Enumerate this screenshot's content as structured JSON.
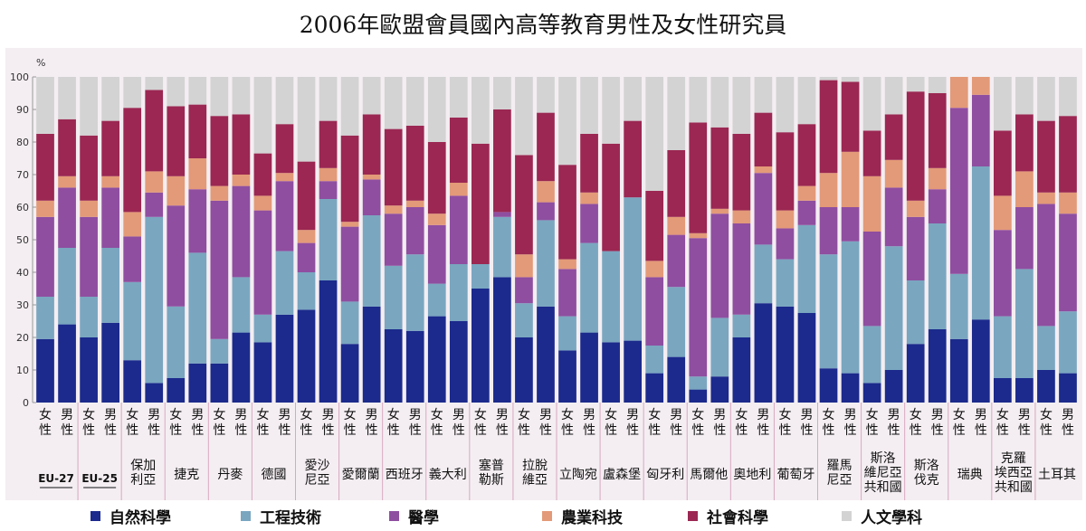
{
  "title": "2006年歐盟會員國內高等教育男性及女性研究員",
  "chart_data": {
    "type": "bar",
    "stacked": true,
    "y_unit_label": "%",
    "ylim": [
      0,
      100
    ],
    "yticks": [
      0,
      10,
      20,
      30,
      40,
      50,
      60,
      70,
      80,
      90,
      100
    ],
    "grid": false,
    "legend_position": "bottom",
    "colors": [
      "#1b2a8c",
      "#7aa6c0",
      "#8f4ea0",
      "#e39a78",
      "#9b2752",
      "#d3d3d3"
    ],
    "series_names": [
      "自然科學",
      "工程技術",
      "醫學",
      "農業科技",
      "社會科學",
      "人文學科"
    ],
    "groups": [
      {
        "label": "EU-27",
        "bars": [
          {
            "gender": "女性",
            "values": [
              19.5,
              13,
              24.5,
              5,
              20.5,
              17.5
            ]
          },
          {
            "gender": "男性",
            "values": [
              24,
              23.5,
              18.5,
              3.5,
              17.5,
              13
            ]
          }
        ]
      },
      {
        "label": "EU-25",
        "bars": [
          {
            "gender": "女性",
            "values": [
              20,
              12.5,
              24.5,
              5,
              20,
              18
            ]
          },
          {
            "gender": "男性",
            "values": [
              24.5,
              23,
              18.5,
              3.5,
              17,
              13.5
            ]
          }
        ]
      },
      {
        "label": "保加利亞",
        "bars": [
          {
            "gender": "女性",
            "values": [
              13,
              24,
              14,
              7.5,
              32,
              9.5
            ]
          },
          {
            "gender": "男性",
            "values": [
              6,
              51,
              7.5,
              6.5,
              25,
              4
            ]
          }
        ]
      },
      {
        "label": "捷克",
        "bars": [
          {
            "gender": "女性",
            "values": [
              7.5,
              22,
              31,
              9,
              21.5,
              9
            ]
          },
          {
            "gender": "男性",
            "values": [
              12,
              34,
              19.5,
              9.5,
              16.5,
              8.5
            ]
          }
        ]
      },
      {
        "label": "丹麥",
        "bars": [
          {
            "gender": "女性",
            "values": [
              12,
              7.5,
              42.5,
              4.5,
              21.5,
              12
            ]
          },
          {
            "gender": "男性",
            "values": [
              21.5,
              17,
              28,
              3.5,
              18.5,
              11.5
            ]
          }
        ]
      },
      {
        "label": "德國",
        "bars": [
          {
            "gender": "女性",
            "values": [
              18.5,
              8.5,
              32,
              4.5,
              13,
              23.5
            ]
          },
          {
            "gender": "男性",
            "values": [
              27,
              19.5,
              21.5,
              2.5,
              15,
              14.5
            ]
          }
        ]
      },
      {
        "label": "愛沙尼亞",
        "bars": [
          {
            "gender": "女性",
            "values": [
              28.5,
              11.5,
              9,
              4,
              21,
              26
            ]
          },
          {
            "gender": "男性",
            "values": [
              37.5,
              25,
              5.5,
              4,
              14.5,
              13.5
            ]
          }
        ]
      },
      {
        "label": "愛爾蘭",
        "bars": [
          {
            "gender": "女性",
            "values": [
              18,
              13,
              23,
              1.5,
              26.5,
              18
            ]
          },
          {
            "gender": "男性",
            "values": [
              29.5,
              28,
              11,
              1.5,
              18.5,
              11.5
            ]
          }
        ]
      },
      {
        "label": "西班牙",
        "bars": [
          {
            "gender": "女性",
            "values": [
              22.5,
              19.5,
              16,
              2.5,
              23.5,
              16
            ]
          },
          {
            "gender": "男性",
            "values": [
              22,
              23.5,
              14.5,
              2,
              23,
              15
            ]
          }
        ]
      },
      {
        "label": "義大利",
        "bars": [
          {
            "gender": "女性",
            "values": [
              26.5,
              10,
              18,
              3.5,
              22,
              20
            ]
          },
          {
            "gender": "男性",
            "values": [
              25,
              17.5,
              21,
              4,
              20,
              12.5
            ]
          }
        ]
      },
      {
        "label": "塞普勒斯",
        "bars": [
          {
            "gender": "女性",
            "values": [
              35,
              7.5,
              0,
              0,
              37,
              20.5
            ]
          },
          {
            "gender": "男性",
            "values": [
              38.5,
              18.5,
              1.5,
              0,
              31.5,
              10
            ]
          }
        ]
      },
      {
        "label": "拉脫維亞",
        "bars": [
          {
            "gender": "女性",
            "values": [
              20,
              10.5,
              8,
              7,
              30.5,
              24
            ]
          },
          {
            "gender": "男性",
            "values": [
              29.5,
              26.5,
              5.5,
              6.5,
              21,
              11
            ]
          }
        ]
      },
      {
        "label": "立陶宛",
        "bars": [
          {
            "gender": "女性",
            "values": [
              16,
              10.5,
              14.5,
              3,
              29,
              27
            ]
          },
          {
            "gender": "男性",
            "values": [
              21.5,
              27.5,
              12,
              3.5,
              18,
              17.5
            ]
          }
        ]
      },
      {
        "label": "盧森堡",
        "bars": [
          {
            "gender": "女性",
            "values": [
              18.5,
              28,
              0,
              0,
              33,
              20.5
            ]
          },
          {
            "gender": "男性",
            "values": [
              19,
              44,
              0,
              0,
              23.5,
              13.5
            ]
          }
        ]
      },
      {
        "label": "匈牙利",
        "bars": [
          {
            "gender": "女性",
            "values": [
              9,
              8.5,
              21,
              5,
              21.5,
              35
            ]
          },
          {
            "gender": "男性",
            "values": [
              14,
              21.5,
              16,
              5.5,
              20.5,
              22.5
            ]
          }
        ]
      },
      {
        "label": "馬爾他",
        "bars": [
          {
            "gender": "女性",
            "values": [
              4,
              4,
              42.5,
              1.5,
              34,
              14
            ]
          },
          {
            "gender": "男性",
            "values": [
              8,
              18,
              32,
              1.5,
              25,
              15.5
            ]
          }
        ]
      },
      {
        "label": "奧地利",
        "bars": [
          {
            "gender": "女性",
            "values": [
              20,
              7,
              28,
              4,
              23.5,
              17.5
            ]
          },
          {
            "gender": "男性",
            "values": [
              30.5,
              18,
              22,
              2,
              16.5,
              11
            ]
          }
        ]
      },
      {
        "label": "葡萄牙",
        "bars": [
          {
            "gender": "女性",
            "values": [
              29.5,
              14.5,
              9.5,
              5.5,
              24,
              17
            ]
          },
          {
            "gender": "男性",
            "values": [
              27.5,
              27,
              7.5,
              4.5,
              19,
              14.5
            ]
          }
        ]
      },
      {
        "label": "羅馬尼亞",
        "bars": [
          {
            "gender": "女性",
            "values": [
              10.5,
              35,
              14.5,
              10.5,
              28.5,
              1
            ]
          },
          {
            "gender": "男性",
            "values": [
              9,
              40.5,
              10.5,
              17,
              21.5,
              1.5
            ]
          }
        ]
      },
      {
        "label": "斯洛維尼亞共和國",
        "bars": [
          {
            "gender": "女性",
            "values": [
              6,
              17.5,
              29,
              17,
              14,
              16.5
            ]
          },
          {
            "gender": "男性",
            "values": [
              10,
              38,
              18,
              8.5,
              14,
              11.5
            ]
          }
        ]
      },
      {
        "label": "斯洛伐克",
        "bars": [
          {
            "gender": "女性",
            "values": [
              18,
              19.5,
              19.5,
              5,
              33.5,
              4.5
            ]
          },
          {
            "gender": "男性",
            "values": [
              22.5,
              32.5,
              10.5,
              6.5,
              23,
              5
            ]
          }
        ]
      },
      {
        "label": "瑞典",
        "bars": [
          {
            "gender": "女性",
            "values": [
              19.5,
              20,
              51,
              9.5,
              0,
              0
            ]
          },
          {
            "gender": "男性",
            "values": [
              25.5,
              47,
              22,
              5.5,
              0,
              0
            ]
          }
        ]
      },
      {
        "label": "克羅埃西亞共和國",
        "bars": [
          {
            "gender": "女性",
            "values": [
              7.5,
              19,
              26.5,
              10.5,
              20,
              16.5
            ]
          },
          {
            "gender": "男性",
            "values": [
              7.5,
              33.5,
              19,
              11,
              17.5,
              11.5
            ]
          }
        ]
      },
      {
        "label": "土耳其",
        "bars": [
          {
            "gender": "女性",
            "values": [
              10,
              13.5,
              37.5,
              3.5,
              22,
              13.5
            ]
          },
          {
            "gender": "男性",
            "values": [
              9,
              19,
              30,
              6.5,
              23.5,
              12
            ]
          }
        ]
      }
    ]
  }
}
